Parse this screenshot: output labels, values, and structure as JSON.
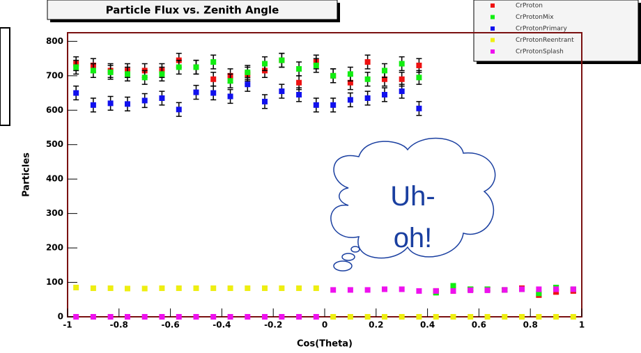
{
  "chart_data": {
    "type": "scatter",
    "title": "Particle Flux vs. Zenith Angle",
    "x_label": "Cos(Theta)",
    "y_label": "Particles",
    "annotation": "Uh-oh!",
    "xlim": [
      -1,
      1
    ],
    "ylim": [
      0,
      825
    ],
    "xticks": [
      -1,
      -0.8,
      -0.6,
      -0.4,
      -0.2,
      0,
      0.2,
      0.4,
      0.6,
      0.8,
      1
    ],
    "yticks": [
      0,
      100,
      200,
      300,
      400,
      500,
      600,
      700,
      800
    ],
    "x": [
      -0.967,
      -0.9,
      -0.833,
      -0.767,
      -0.7,
      -0.633,
      -0.567,
      -0.5,
      -0.433,
      -0.367,
      -0.3,
      -0.233,
      -0.167,
      -0.1,
      -0.033,
      0.033,
      0.1,
      0.167,
      0.233,
      0.3,
      0.367,
      0.433,
      0.5,
      0.567,
      0.633,
      0.7,
      0.767,
      0.833,
      0.9,
      0.967
    ],
    "series": [
      {
        "name": "CrProton",
        "color": "#ee1111",
        "values": [
          735,
          730,
          715,
          715,
          715,
          715,
          745,
          725,
          690,
          700,
          705,
          715,
          745,
          680,
          740,
          700,
          680,
          740,
          690,
          690,
          730,
          75,
          75,
          80,
          80,
          78,
          83,
          63,
          72,
          75
        ],
        "errors": [
          20,
          20,
          20,
          20,
          20,
          20,
          20,
          20,
          20,
          20,
          20,
          20,
          20,
          20,
          20,
          20,
          20,
          20,
          20,
          20,
          20,
          5,
          5,
          5,
          5,
          5,
          5,
          5,
          5,
          5
        ]
      },
      {
        "name": "CrProtonMix",
        "color": "#11ee11",
        "values": [
          725,
          715,
          710,
          705,
          695,
          705,
          725,
          725,
          740,
          685,
          710,
          735,
          745,
          720,
          730,
          700,
          705,
          690,
          715,
          735,
          695,
          70,
          90,
          80,
          80,
          78,
          80,
          68,
          85,
          80
        ],
        "errors": [
          20,
          20,
          20,
          20,
          20,
          20,
          20,
          20,
          20,
          20,
          20,
          20,
          20,
          20,
          20,
          20,
          20,
          20,
          20,
          20,
          20,
          5,
          5,
          5,
          5,
          5,
          5,
          5,
          5,
          5
        ]
      },
      {
        "name": "CrProtonPrimary",
        "color": "#1111ee",
        "values": [
          650,
          615,
          620,
          618,
          628,
          635,
          602,
          652,
          650,
          640,
          675,
          625,
          655,
          645,
          615,
          615,
          630,
          635,
          645,
          655,
          605,
          null,
          null,
          null,
          null,
          null,
          null,
          null,
          null,
          null
        ],
        "errors": [
          20,
          20,
          20,
          20,
          20,
          20,
          20,
          20,
          20,
          20,
          20,
          20,
          20,
          20,
          20,
          20,
          20,
          20,
          20,
          20,
          20,
          null,
          null,
          null,
          null,
          null,
          null,
          null,
          null,
          null
        ]
      },
      {
        "name": "CrProtonReentrant",
        "color": "#eeee11",
        "values": [
          85,
          83,
          83,
          82,
          82,
          83,
          83,
          83,
          83,
          83,
          83,
          83,
          83,
          83,
          83,
          0,
          0,
          0,
          0,
          0,
          0,
          0,
          0,
          0,
          0,
          0,
          0,
          0,
          0,
          0
        ]
      },
      {
        "name": "CrProtonSplash",
        "color": "#ee11ee",
        "values": [
          0,
          0,
          0,
          0,
          0,
          0,
          0,
          0,
          0,
          0,
          0,
          0,
          0,
          0,
          0,
          78,
          78,
          78,
          80,
          80,
          75,
          75,
          75,
          77,
          77,
          78,
          80,
          80,
          80,
          80
        ]
      }
    ]
  }
}
